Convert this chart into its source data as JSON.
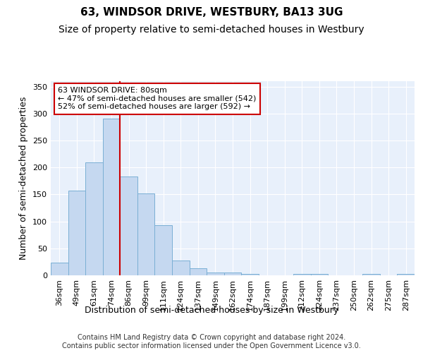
{
  "title": "63, WINDSOR DRIVE, WESTBURY, BA13 3UG",
  "subtitle": "Size of property relative to semi-detached houses in Westbury",
  "xlabel": "Distribution of semi-detached houses by size in Westbury",
  "ylabel": "Number of semi-detached properties",
  "bar_labels": [
    "36sqm",
    "49sqm",
    "61sqm",
    "74sqm",
    "86sqm",
    "99sqm",
    "111sqm",
    "124sqm",
    "137sqm",
    "149sqm",
    "162sqm",
    "174sqm",
    "187sqm",
    "199sqm",
    "212sqm",
    "224sqm",
    "237sqm",
    "250sqm",
    "262sqm",
    "275sqm",
    "287sqm"
  ],
  "bar_values": [
    23,
    157,
    210,
    290,
    183,
    152,
    93,
    27,
    13,
    5,
    5,
    3,
    0,
    0,
    3,
    3,
    0,
    0,
    2,
    0,
    3
  ],
  "bar_color": "#c5d8f0",
  "bar_edge_color": "#7aafd4",
  "background_color": "#e8f0fb",
  "grid_color": "#ffffff",
  "red_line_x": 3.5,
  "annotation_text": "63 WINDSOR DRIVE: 80sqm\n← 47% of semi-detached houses are smaller (542)\n52% of semi-detached houses are larger (592) →",
  "annotation_box_color": "white",
  "annotation_box_edge": "#cc0000",
  "red_line_color": "#cc0000",
  "ylim": [
    0,
    360
  ],
  "yticks": [
    0,
    50,
    100,
    150,
    200,
    250,
    300,
    350
  ],
  "footer": "Contains HM Land Registry data © Crown copyright and database right 2024.\nContains public sector information licensed under the Open Government Licence v3.0.",
  "title_fontsize": 11,
  "subtitle_fontsize": 10,
  "xlabel_fontsize": 9,
  "ylabel_fontsize": 9,
  "tick_fontsize": 8,
  "annotation_fontsize": 8,
  "footer_fontsize": 7
}
